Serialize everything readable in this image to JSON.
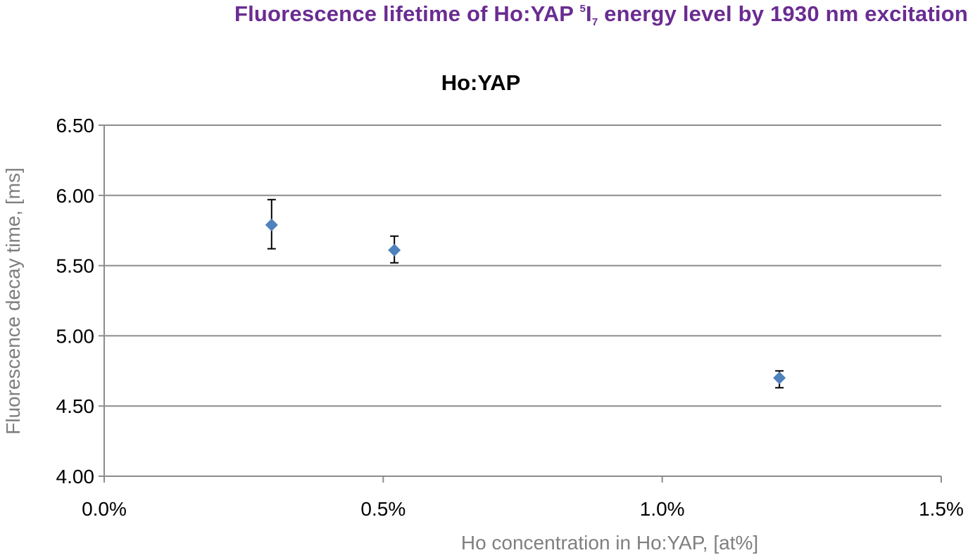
{
  "heading": {
    "part1": "Fluorescence lifetime of Ho:YAP ",
    "sup": "5",
    "main": "I",
    "sub": "7",
    "part2": " energy level by 1930 nm excitation",
    "color": "#6a2c91"
  },
  "chart_data": {
    "type": "scatter",
    "title": "Ho:YAP",
    "xlabel": "Ho concentration in Ho:YAP, [at%]",
    "ylabel": "Fluorescence decay time, [ms]",
    "xlim": [
      0.0,
      1.5
    ],
    "ylim": [
      4.0,
      6.5
    ],
    "x_ticks": [
      0.0,
      0.5,
      1.0,
      1.5
    ],
    "x_tick_labels": [
      "0.0%",
      "0.5%",
      "1.0%",
      "1.5%"
    ],
    "y_ticks": [
      4.0,
      4.5,
      5.0,
      5.5,
      6.0,
      6.5
    ],
    "y_tick_labels": [
      "4.00",
      "4.50",
      "5.00",
      "5.50",
      "6.00",
      "6.50"
    ],
    "grid": "horizontal",
    "marker": "diamond",
    "marker_color": "#4f81bd",
    "series": [
      {
        "x": [
          0.3,
          0.52,
          1.21
        ],
        "y": [
          5.79,
          5.61,
          4.7
        ],
        "y_err_low": [
          0.17,
          0.09,
          0.07
        ],
        "y_err_high": [
          0.18,
          0.1,
          0.05
        ]
      }
    ]
  }
}
